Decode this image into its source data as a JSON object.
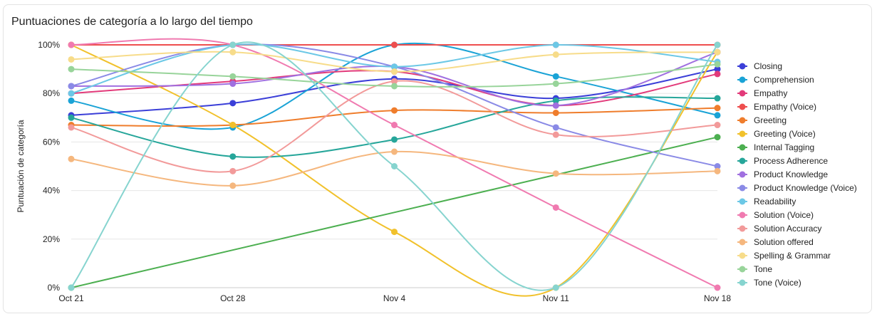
{
  "card": {
    "title": "Puntuaciones de categoría a lo largo del tiempo"
  },
  "chart_data": {
    "type": "line",
    "title": "Puntuaciones de categoría a lo largo del tiempo",
    "xlabel": "",
    "ylabel": "Puntuación de categoría",
    "categories": [
      "Oct 21",
      "Oct 28",
      "Nov 4",
      "Nov 11",
      "Nov 18"
    ],
    "ylim": [
      0,
      100
    ],
    "yticks": [
      0,
      20,
      40,
      60,
      80,
      100
    ],
    "ytick_labels": [
      "0%",
      "20%",
      "40%",
      "60%",
      "80%",
      "100%"
    ],
    "grid": true,
    "legend_position": "right",
    "series": [
      {
        "name": "Closing",
        "color": "#3b3fd8",
        "values": [
          71,
          76,
          86,
          78,
          90
        ]
      },
      {
        "name": "Comprehension",
        "color": "#1aa3d6",
        "values": [
          77,
          66,
          100,
          87,
          71
        ]
      },
      {
        "name": "Empathy",
        "color": "#e23a7a",
        "values": [
          80,
          85,
          89,
          75,
          88
        ]
      },
      {
        "name": "Empathy (Voice)",
        "color": "#ee4e4e",
        "values": [
          100,
          100,
          100,
          100,
          100
        ]
      },
      {
        "name": "Greeting",
        "color": "#ef7d2c",
        "values": [
          67,
          67,
          73,
          72,
          74
        ]
      },
      {
        "name": "Greeting (Voice)",
        "color": "#f1c12b",
        "values": [
          100,
          67,
          23,
          0,
          97
        ]
      },
      {
        "name": "Internal Tagging",
        "color": "#4caf50",
        "values": [
          0,
          null,
          null,
          null,
          62
        ]
      },
      {
        "name": "Process Adherence",
        "color": "#26a69a",
        "values": [
          70,
          54,
          61,
          77,
          78
        ]
      },
      {
        "name": "Product Knowledge",
        "color": "#a070e0",
        "values": [
          83,
          84,
          91,
          75,
          97
        ]
      },
      {
        "name": "Product Knowledge (Voice)",
        "color": "#8a8ae6",
        "values": [
          83,
          100,
          91,
          66,
          50
        ]
      },
      {
        "name": "Readability",
        "color": "#6cc8e6",
        "values": [
          80,
          100,
          91,
          100,
          93
        ]
      },
      {
        "name": "Solution (Voice)",
        "color": "#f07ab0",
        "values": [
          100,
          100,
          67,
          33,
          0
        ]
      },
      {
        "name": "Solution Accuracy",
        "color": "#f29a9a",
        "values": [
          66,
          48,
          85,
          63,
          67
        ]
      },
      {
        "name": "Solution offered",
        "color": "#f5b77e",
        "values": [
          53,
          42,
          56,
          47,
          48
        ]
      },
      {
        "name": "Spelling & Grammar",
        "color": "#f7dc8a",
        "values": [
          94,
          97,
          89,
          96,
          97
        ]
      },
      {
        "name": "Tone",
        "color": "#98d49a",
        "values": [
          90,
          87,
          83,
          84,
          92
        ]
      },
      {
        "name": "Tone (Voice)",
        "color": "#86d4cf",
        "values": [
          0,
          100,
          50,
          0,
          100
        ]
      }
    ]
  }
}
